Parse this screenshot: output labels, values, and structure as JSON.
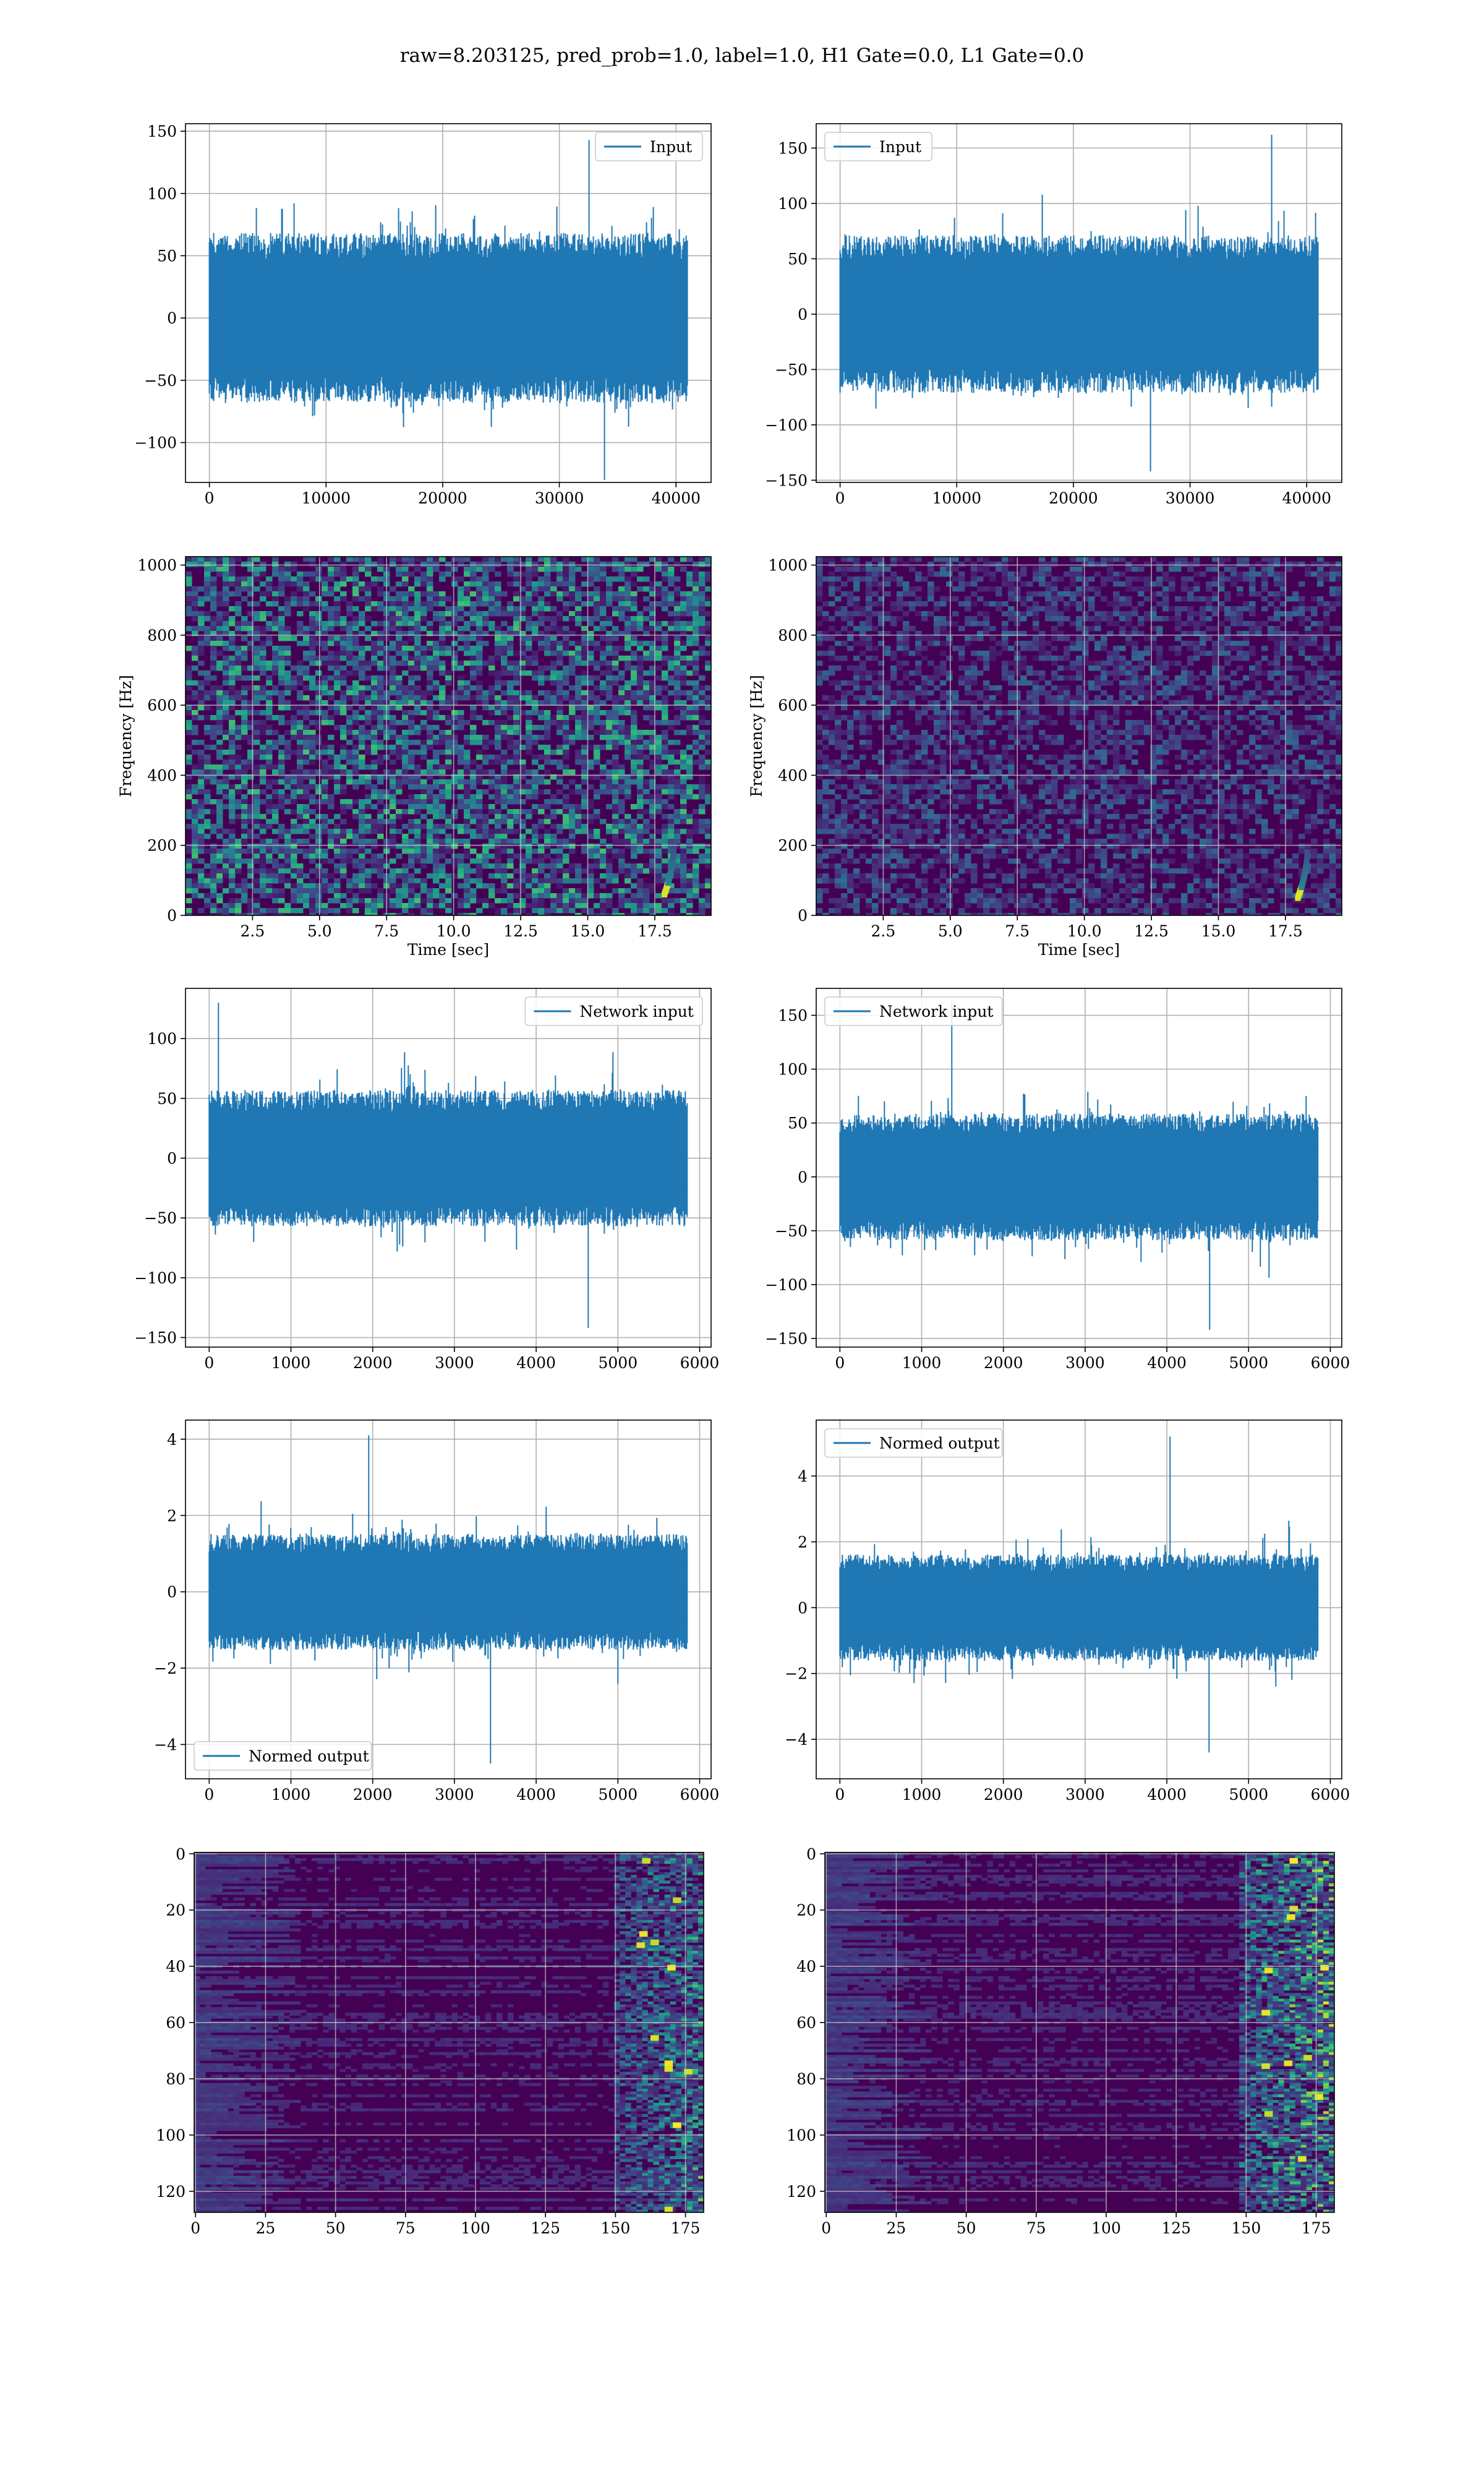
{
  "figure": {
    "suptitle": "raw=8.203125, pred_prob=1.0, label=1.0, H1 Gate=0.0, L1 Gate=0.0"
  },
  "colors": {
    "line": "#1f77b4",
    "viridis_dark": "#440154",
    "viridis_mid": "#21918c",
    "viridis_green": "#5ec962",
    "viridis_yellow": "#fde725"
  },
  "chart_data": [
    {
      "id": "input-h1",
      "type": "line",
      "position": "row1-left",
      "legend": "Input",
      "legend_loc": "upper right",
      "xticks": [
        0,
        10000,
        20000,
        30000,
        40000
      ],
      "xlim": [
        -2048,
        43008
      ],
      "x_extent": [
        0,
        40960
      ],
      "yticks": [
        -100,
        -50,
        0,
        50,
        100,
        150
      ],
      "ylim": [
        -132,
        156
      ],
      "envelope": {
        "typical": 72,
        "peak_max": 143,
        "peak_min": -130,
        "noise_std": 24
      },
      "grid": true,
      "xlabel": "",
      "ylabel": ""
    },
    {
      "id": "input-l1",
      "type": "line",
      "position": "row1-right",
      "legend": "Input",
      "legend_loc": "upper left",
      "xticks": [
        0,
        10000,
        20000,
        30000,
        40000
      ],
      "xlim": [
        -2048,
        43008
      ],
      "x_extent": [
        0,
        40960
      ],
      "yticks": [
        -150,
        -100,
        -50,
        0,
        50,
        100,
        150
      ],
      "ylim": [
        -152,
        172
      ],
      "envelope": {
        "typical": 75,
        "peak_max": 162,
        "peak_min": -142,
        "noise_std": 25
      },
      "grid": true,
      "xlabel": "",
      "ylabel": ""
    },
    {
      "id": "spec-h1",
      "type": "heatmap",
      "position": "row2-left",
      "xticks": [
        2.5,
        5.0,
        7.5,
        10.0,
        12.5,
        15.0,
        17.5
      ],
      "xlim": [
        0,
        19.6
      ],
      "yticks": [
        0,
        200,
        400,
        600,
        800,
        1000
      ],
      "ylim": [
        0,
        1024
      ],
      "xlabel": "Time [sec]",
      "ylabel": "Frequency [Hz]",
      "noise_level": 0.32,
      "chirp": {
        "t_end": 18.2,
        "f_start": 60,
        "f_end": 200
      },
      "grid": true
    },
    {
      "id": "spec-l1",
      "type": "heatmap",
      "position": "row2-right",
      "xticks": [
        2.5,
        5.0,
        7.5,
        10.0,
        12.5,
        15.0,
        17.5
      ],
      "xlim": [
        0,
        19.6
      ],
      "yticks": [
        0,
        200,
        400,
        600,
        800,
        1000
      ],
      "ylim": [
        0,
        1024
      ],
      "xlabel": "Time [sec]",
      "ylabel": "Frequency [Hz]",
      "noise_level": 0.16,
      "chirp": {
        "t_end": 18.3,
        "f_start": 50,
        "f_end": 180
      },
      "grid": true
    },
    {
      "id": "network-input-h1",
      "type": "line",
      "position": "row3-left",
      "legend": "Network input",
      "legend_loc": "upper right",
      "xticks": [
        0,
        1000,
        2000,
        3000,
        4000,
        5000,
        6000
      ],
      "xlim": [
        -290,
        6140
      ],
      "x_extent": [
        0,
        5850
      ],
      "yticks": [
        -150,
        -100,
        -50,
        0,
        50,
        100
      ],
      "ylim": [
        -158,
        142
      ],
      "envelope": {
        "typical": 60,
        "peak_max": 130,
        "peak_min": -142,
        "noise_std": 22
      },
      "grid": true,
      "xlabel": "",
      "ylabel": ""
    },
    {
      "id": "network-input-l1",
      "type": "line",
      "position": "row3-right",
      "legend": "Network input",
      "legend_loc": "upper left",
      "xticks": [
        0,
        1000,
        2000,
        3000,
        4000,
        5000,
        6000
      ],
      "xlim": [
        -290,
        6140
      ],
      "x_extent": [
        0,
        5850
      ],
      "yticks": [
        -150,
        -100,
        -50,
        0,
        50,
        100,
        150
      ],
      "ylim": [
        -158,
        175
      ],
      "envelope": {
        "typical": 62,
        "peak_max": 163,
        "peak_min": -142,
        "noise_std": 22
      },
      "grid": true,
      "xlabel": "",
      "ylabel": ""
    },
    {
      "id": "normed-output-h1",
      "type": "line",
      "position": "row4-left",
      "legend": "Normed output",
      "legend_loc": "lower left",
      "xticks": [
        0,
        1000,
        2000,
        3000,
        4000,
        5000,
        6000
      ],
      "xlim": [
        -290,
        6140
      ],
      "x_extent": [
        0,
        5850
      ],
      "yticks": [
        -4,
        -2,
        0,
        2,
        4
      ],
      "ylim": [
        -4.9,
        4.5
      ],
      "envelope": {
        "typical": 1.6,
        "peak_max": 4.1,
        "peak_min": -4.5,
        "noise_std": 0.62
      },
      "grid": true,
      "xlabel": "",
      "ylabel": ""
    },
    {
      "id": "normed-output-l1",
      "type": "line",
      "position": "row4-right",
      "legend": "Normed output",
      "legend_loc": "upper left",
      "xticks": [
        0,
        1000,
        2000,
        3000,
        4000,
        5000,
        6000
      ],
      "xlim": [
        -290,
        6140
      ],
      "x_extent": [
        0,
        5850
      ],
      "yticks": [
        -4,
        -2,
        0,
        2,
        4
      ],
      "ylim": [
        -5.2,
        5.7
      ],
      "envelope": {
        "typical": 1.7,
        "peak_max": 5.2,
        "peak_min": -4.4,
        "noise_std": 0.64
      },
      "grid": true,
      "xlabel": "",
      "ylabel": ""
    },
    {
      "id": "feature-map-h1",
      "type": "heatmap",
      "position": "row5-left",
      "xticks": [
        0,
        25,
        50,
        75,
        100,
        125,
        150,
        175
      ],
      "xlim": [
        -0.5,
        181.5
      ],
      "yticks": [
        0,
        20,
        40,
        60,
        80,
        100,
        120
      ],
      "ylim": [
        127.5,
        -0.5
      ],
      "columns": 182,
      "rows": 128,
      "hot_region_start": 150,
      "intensity": 0.55,
      "grid": true,
      "xlabel": "",
      "ylabel": ""
    },
    {
      "id": "feature-map-l1",
      "type": "heatmap",
      "position": "row5-right",
      "xticks": [
        0,
        25,
        50,
        75,
        100,
        125,
        150,
        175
      ],
      "xlim": [
        -0.5,
        181.5
      ],
      "yticks": [
        0,
        20,
        40,
        60,
        80,
        100,
        120
      ],
      "ylim": [
        127.5,
        -0.5
      ],
      "columns": 182,
      "rows": 128,
      "hot_region_start": 148,
      "intensity": 0.75,
      "grid": true,
      "xlabel": "",
      "ylabel": ""
    }
  ]
}
